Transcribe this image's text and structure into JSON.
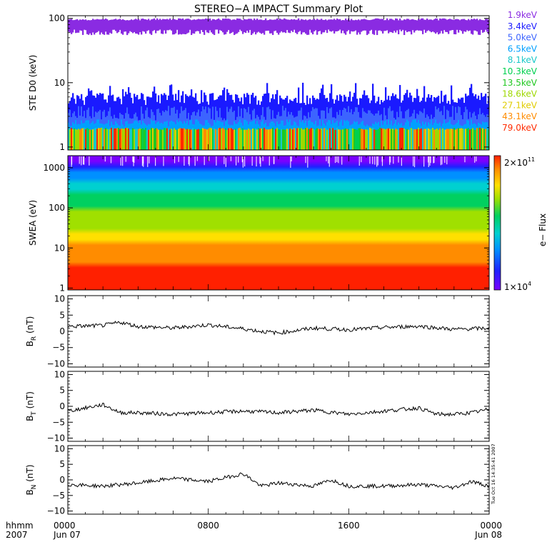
{
  "title": "STEREO−A IMPACT Summary Plot",
  "stamp": "Tue Oct 16 14:35:41 2007",
  "colors": {
    "axes": "#000000",
    "background": "#ffffff",
    "legend_text": [
      "#8a2be2",
      "#1a1aff",
      "#3c64ff",
      "#00a0ff",
      "#18c8c8",
      "#00d050",
      "#20c820",
      "#9ed800",
      "#e0cc00",
      "#ff8c00",
      "#ff2a00"
    ]
  },
  "chart_data": [
    {
      "type": "line",
      "panel": "ste",
      "ylabel": "STE D0 (keV)",
      "yscale": "log",
      "ylim": [
        0.9,
        110
      ],
      "yticks": [
        1,
        10,
        100
      ],
      "ytick_labels": [
        "1",
        "10",
        "100"
      ],
      "series": [
        {
          "name": "1.9keV",
          "approx_range": [
            55,
            100
          ],
          "color": "#8a2be2"
        },
        {
          "name": "3.4keV",
          "approx_range": [
            2.5,
            8
          ],
          "color": "#1a1aff"
        },
        {
          "name": "5.0keV",
          "approx_range": [
            2.2,
            4.5
          ],
          "color": "#3c64ff"
        },
        {
          "name": "6.5keV",
          "approx_range": [
            1.8,
            3
          ],
          "color": "#00a0ff"
        },
        {
          "name": "8.1keV",
          "approx_range": [
            1.5,
            2.2
          ],
          "color": "#18c8c8"
        },
        {
          "name": "10.3keV",
          "approx_range": [
            1.0,
            2.0
          ],
          "color": "#00d050"
        },
        {
          "name": "13.5keV",
          "approx_range": [
            1.0,
            2.0
          ],
          "color": "#20c820"
        },
        {
          "name": "18.6keV",
          "approx_range": [
            1.0,
            2.0
          ],
          "color": "#9ed800"
        },
        {
          "name": "27.1keV",
          "approx_range": [
            1.0,
            2.0
          ],
          "color": "#e0cc00"
        },
        {
          "name": "43.1keV",
          "approx_range": [
            1.0,
            2.0
          ],
          "color": "#ff8c00"
        },
        {
          "name": "79.0keV",
          "approx_range": [
            1.0,
            2.0
          ],
          "color": "#ff2a00"
        }
      ]
    },
    {
      "type": "heatmap",
      "panel": "swea",
      "ylabel": "SWEA (eV)",
      "yscale": "log",
      "ylim": [
        0.9,
        2000
      ],
      "yticks": [
        1,
        10,
        100,
        1000
      ],
      "ytick_labels": [
        "1",
        "10",
        "100",
        "1000"
      ],
      "colorbar": {
        "label": "e− Flux",
        "min": 10000,
        "max": 200000000000,
        "min_label": "1×10",
        "min_exp": "4",
        "max_label": "2×10",
        "max_exp": "11"
      },
      "profile": [
        {
          "energy": 1,
          "flux": 150000000000.0
        },
        {
          "energy": 4,
          "flux": 80000000000.0
        },
        {
          "energy": 8,
          "flux": 30000000000.0
        },
        {
          "energy": 30,
          "flux": 2000000000.0
        },
        {
          "energy": 100,
          "flux": 300000000.0
        },
        {
          "energy": 300,
          "flux": 20000000.0
        },
        {
          "energy": 600,
          "flux": 1500000.0
        },
        {
          "energy": 1200,
          "flux": 50000.0
        },
        {
          "energy": 2000,
          "flux": 10000.0
        }
      ]
    },
    {
      "type": "line",
      "panel": "br",
      "ylabel": "B",
      "ylabel_sub": "R",
      "ylabel_unit": " (nT)",
      "ylim": [
        -11,
        11
      ],
      "yticks": [
        -10,
        -5,
        0,
        5,
        10
      ],
      "ytick_labels": [
        "−10",
        "−5",
        "0",
        "5",
        "10"
      ],
      "x": [
        0,
        2,
        3,
        4,
        6,
        8,
        10,
        11,
        12,
        14,
        16,
        18,
        20,
        22,
        24
      ],
      "y": [
        1.5,
        1.8,
        2.8,
        1.5,
        1.0,
        2.0,
        0.8,
        0.0,
        -0.5,
        1.0,
        0.5,
        1.2,
        1.6,
        0.6,
        1.0
      ]
    },
    {
      "type": "line",
      "panel": "bt",
      "ylabel": "B",
      "ylabel_sub": "T",
      "ylabel_unit": " (nT)",
      "ylim": [
        -11,
        11
      ],
      "yticks": [
        -10,
        -5,
        0,
        5,
        10
      ],
      "ytick_labels": [
        "−10",
        "−5",
        "0",
        "5",
        "10"
      ],
      "x": [
        0,
        1,
        2,
        3,
        4,
        6,
        8,
        10,
        12,
        14,
        16,
        18,
        20,
        21,
        22,
        23,
        24
      ],
      "y": [
        -1.5,
        -0.5,
        0.5,
        -2.0,
        -2.0,
        -2.5,
        -2.0,
        -1.5,
        -2.0,
        -1.2,
        -2.5,
        -1.5,
        -0.5,
        -2.5,
        -2.5,
        -2.0,
        -1.0
      ]
    },
    {
      "type": "line",
      "panel": "bn",
      "ylabel": "B",
      "ylabel_sub": "N",
      "ylabel_unit": " (nT)",
      "ylim": [
        -11,
        11
      ],
      "yticks": [
        -10,
        -5,
        0,
        5,
        10
      ],
      "ytick_labels": [
        "−10",
        "−5",
        "0",
        "5",
        "10"
      ],
      "x": [
        0,
        2,
        4,
        6,
        8,
        10,
        11,
        12,
        14,
        15,
        16,
        18,
        20,
        22,
        23,
        24
      ],
      "y": [
        -1.5,
        -2.0,
        -1.0,
        0.5,
        -0.5,
        2.0,
        -2.0,
        -1.0,
        -2.0,
        0.0,
        -2.0,
        -2.0,
        -1.5,
        -2.5,
        -0.5,
        -2.0
      ]
    }
  ],
  "xaxis": {
    "row1_label": "hhmm",
    "row2_label": "2007",
    "ticks": [
      {
        "x": 0,
        "top": "0000",
        "bottom": "Jun 07"
      },
      {
        "x": 8,
        "top": "0800",
        "bottom": ""
      },
      {
        "x": 16,
        "top": "1600",
        "bottom": ""
      },
      {
        "x": 24,
        "top": "0000",
        "bottom": "Jun 08"
      }
    ]
  }
}
